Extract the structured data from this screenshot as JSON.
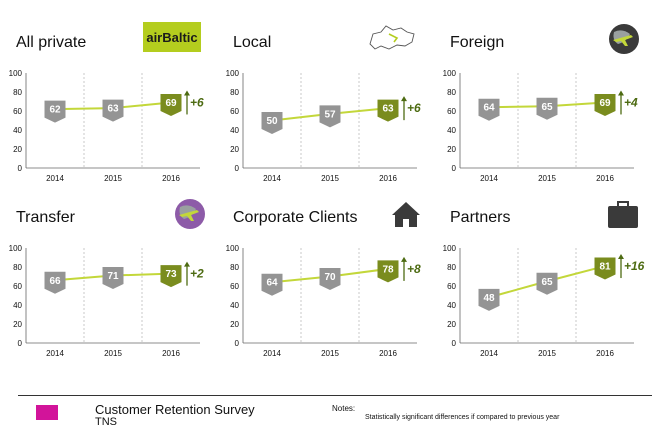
{
  "colors": {
    "line": "#c3d73a",
    "grey_marker": "#949494",
    "green_marker": "#7a8c1e",
    "delta_text": "#4d6b12",
    "grid_dash": "#bdbdbd",
    "brand": "#d2149a"
  },
  "chart_data": [
    {
      "type": "line",
      "title": "All private",
      "x": [
        "2014",
        "2015",
        "2016"
      ],
      "values": [
        62,
        63,
        69
      ],
      "change": "+6",
      "ylim": [
        0,
        100
      ],
      "yticks": [
        0,
        20,
        40,
        60,
        80,
        100
      ],
      "icon": "airbaltic-logo"
    },
    {
      "type": "line",
      "title": "Local",
      "x": [
        "2014",
        "2015",
        "2016"
      ],
      "values": [
        50,
        57,
        63
      ],
      "change": "+6",
      "ylim": [
        0,
        100
      ],
      "yticks": [
        0,
        20,
        40,
        60,
        80,
        100
      ],
      "icon": "latvia-map-icon"
    },
    {
      "type": "line",
      "title": "Foreign",
      "x": [
        "2014",
        "2015",
        "2016"
      ],
      "values": [
        64,
        65,
        69
      ],
      "change": "+4",
      "ylim": [
        0,
        100
      ],
      "yticks": [
        0,
        20,
        40,
        60,
        80,
        100
      ],
      "icon": "globe-plane-icon"
    },
    {
      "type": "line",
      "title": "Transfer",
      "x": [
        "2014",
        "2015",
        "2016"
      ],
      "values": [
        66,
        71,
        73
      ],
      "change": "+2",
      "ylim": [
        0,
        100
      ],
      "yticks": [
        0,
        20,
        40,
        60,
        80,
        100
      ],
      "icon": "transfer-globe-icon"
    },
    {
      "type": "line",
      "title": "Corporate Clients",
      "x": [
        "2014",
        "2015",
        "2016"
      ],
      "values": [
        64,
        70,
        78
      ],
      "change": "+8",
      "ylim": [
        0,
        100
      ],
      "yticks": [
        0,
        20,
        40,
        60,
        80,
        100
      ],
      "icon": "house-icon"
    },
    {
      "type": "line",
      "title": "Partners",
      "x": [
        "2014",
        "2015",
        "2016"
      ],
      "values": [
        48,
        65,
        81
      ],
      "change": "+16",
      "ylim": [
        0,
        100
      ],
      "yticks": [
        0,
        20,
        40,
        60,
        80,
        100
      ],
      "icon": "briefcase-icon"
    }
  ],
  "logo": {
    "text": "airBaltic"
  },
  "footer": {
    "title": "Customer Retention Survey",
    "subtitle": "TNS",
    "notes_label": "Notes:",
    "notes_text": "Statistically significant differences if compared to previous year"
  }
}
